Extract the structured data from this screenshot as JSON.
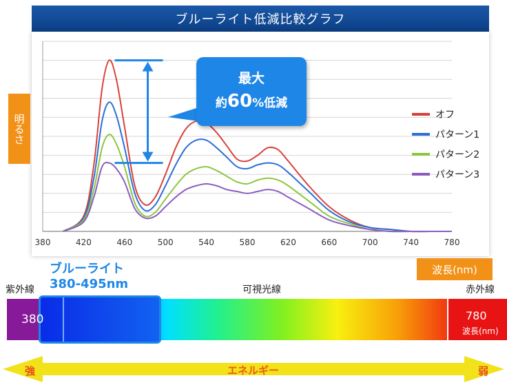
{
  "title": "ブルーライト低減比較グラフ",
  "ylabel": "明るさ",
  "xunit": "波長(nm)",
  "callout": {
    "line1": "最大",
    "prefix": "約",
    "big": "60",
    "suffix": "%低減"
  },
  "spectrum": {
    "uv_label": "紫外線",
    "visible_label": "可視光線",
    "ir_label": "赤外線",
    "blue_title": "ブルーライト",
    "blue_range": "380-495nm",
    "start_value": "380",
    "end_value": "780",
    "end_unit": "波長(nm)"
  },
  "energy": {
    "label": "エネルギー",
    "strong": "強",
    "weak": "弱"
  },
  "colors": {
    "off": "#d9403a",
    "p1": "#2a6fd6",
    "p2": "#8cc63e",
    "p3": "#8a5cc0",
    "accent": "#1e86e6",
    "orange": "#f29118"
  },
  "chart_data": {
    "type": "line",
    "xlabel": "",
    "ylabel": "明るさ",
    "xlim": [
      380,
      780
    ],
    "ylim": [
      0,
      100
    ],
    "x_ticks": [
      380,
      420,
      460,
      500,
      540,
      580,
      620,
      660,
      700,
      740,
      780
    ],
    "x": [
      400,
      420,
      430,
      438,
      445,
      452,
      460,
      470,
      480,
      490,
      500,
      510,
      520,
      530,
      540,
      550,
      560,
      570,
      580,
      590,
      600,
      610,
      620,
      640,
      660,
      680,
      700,
      720,
      740,
      760,
      780
    ],
    "series": [
      {
        "name": "オフ",
        "color": "#d9403a",
        "values": [
          0,
          8,
          35,
          75,
          90,
          80,
          55,
          24,
          14,
          18,
          30,
          44,
          54,
          58,
          57,
          52,
          45,
          38,
          37,
          40,
          44,
          43,
          37,
          24,
          13,
          6,
          2,
          1,
          0,
          0,
          0
        ]
      },
      {
        "name": "パターン1",
        "color": "#2a6fd6",
        "values": [
          0,
          7,
          28,
          58,
          68,
          61,
          44,
          20,
          11,
          14,
          24,
          35,
          44,
          48,
          48,
          44,
          39,
          34,
          33,
          35,
          36,
          35,
          31,
          21,
          11,
          5,
          2,
          1,
          0,
          0,
          0
        ]
      },
      {
        "name": "パターン2",
        "color": "#8cc63e",
        "values": [
          0,
          6,
          22,
          44,
          51,
          46,
          34,
          15,
          8,
          10,
          17,
          24,
          30,
          33,
          34,
          32,
          29,
          26,
          25,
          27,
          28,
          27,
          24,
          16,
          8,
          4,
          1,
          0,
          0,
          0,
          0
        ]
      },
      {
        "name": "パターン3",
        "color": "#8a5cc0",
        "values": [
          0,
          5,
          18,
          34,
          36,
          33,
          26,
          12,
          7,
          8,
          13,
          18,
          22,
          24,
          25,
          24,
          22,
          21,
          20,
          21,
          22,
          21,
          18,
          12,
          6,
          3,
          1,
          0,
          0,
          0,
          0
        ]
      }
    ]
  }
}
